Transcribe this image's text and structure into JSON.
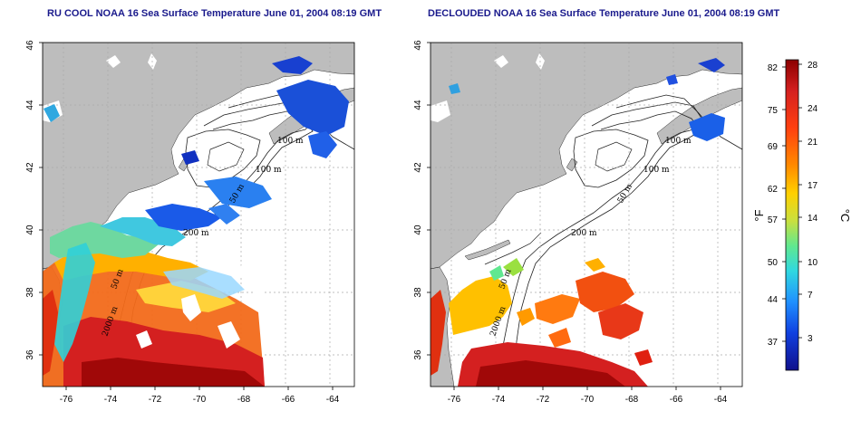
{
  "panels": [
    {
      "title": "RU COOL NOAA 16 Sea Surface Temperature June 01, 2004 08:19 GMT",
      "x_ticks": [
        "-76",
        "-74",
        "-72",
        "-70",
        "-68",
        "-66",
        "-64"
      ],
      "y_ticks": [
        "36",
        "38",
        "40",
        "42",
        "44",
        "46"
      ],
      "contour_labels": [
        "100 m",
        "100 m",
        "50 m",
        "200 m",
        "50 m",
        "2000 m"
      ]
    },
    {
      "title": "DECLOUDED NOAA 16 Sea Surface Temperature June 01, 2004 08:19 GMT",
      "x_ticks": [
        "-76",
        "-74",
        "-72",
        "-70",
        "-68",
        "-66",
        "-64"
      ],
      "y_ticks": [
        "36",
        "38",
        "40",
        "42",
        "44",
        "46"
      ],
      "contour_labels": [
        "100 m",
        "100 m",
        "50 m",
        "200 m",
        "50 m",
        "2000 m"
      ]
    }
  ],
  "colorbar": {
    "fahrenheit_ticks": [
      "82",
      "75",
      "69",
      "62",
      "57",
      "50",
      "44",
      "37"
    ],
    "celsius_ticks": [
      "28",
      "24",
      "21",
      "17",
      "14",
      "10",
      "7",
      "3"
    ],
    "fahrenheit_unit": "°F",
    "celsius_unit": "°C",
    "gradient_colors": [
      "#8b0000",
      "#d42020",
      "#ff4010",
      "#ff8a00",
      "#ffd000",
      "#c8e040",
      "#60e890",
      "#30d8e0",
      "#2090ff",
      "#1040e0",
      "#10108c"
    ]
  },
  "colors": {
    "land": "#bdbdbd",
    "ocean_missing": "#ffffff",
    "title": "#1a1a8c"
  }
}
